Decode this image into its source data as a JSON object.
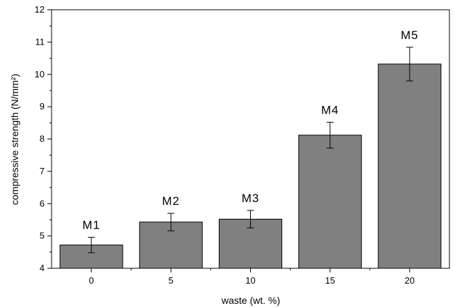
{
  "chart_data": {
    "type": "bar",
    "categories": [
      "0",
      "5",
      "10",
      "15",
      "20"
    ],
    "values": [
      4.72,
      5.43,
      5.52,
      8.12,
      10.32
    ],
    "errors": [
      0.24,
      0.27,
      0.27,
      0.4,
      0.52
    ],
    "bar_labels": [
      "M1",
      "M2",
      "M3",
      "M4",
      "M5"
    ],
    "title": "",
    "xlabel": "waste (wt. %)",
    "ylabel": "compressive strength (N/mm²)",
    "ylim": [
      4,
      12
    ],
    "yticks": [
      4,
      5,
      6,
      7,
      8,
      9,
      10,
      11,
      12
    ],
    "grid": false,
    "bar_color": "#808080",
    "edge_color": "#000000"
  }
}
